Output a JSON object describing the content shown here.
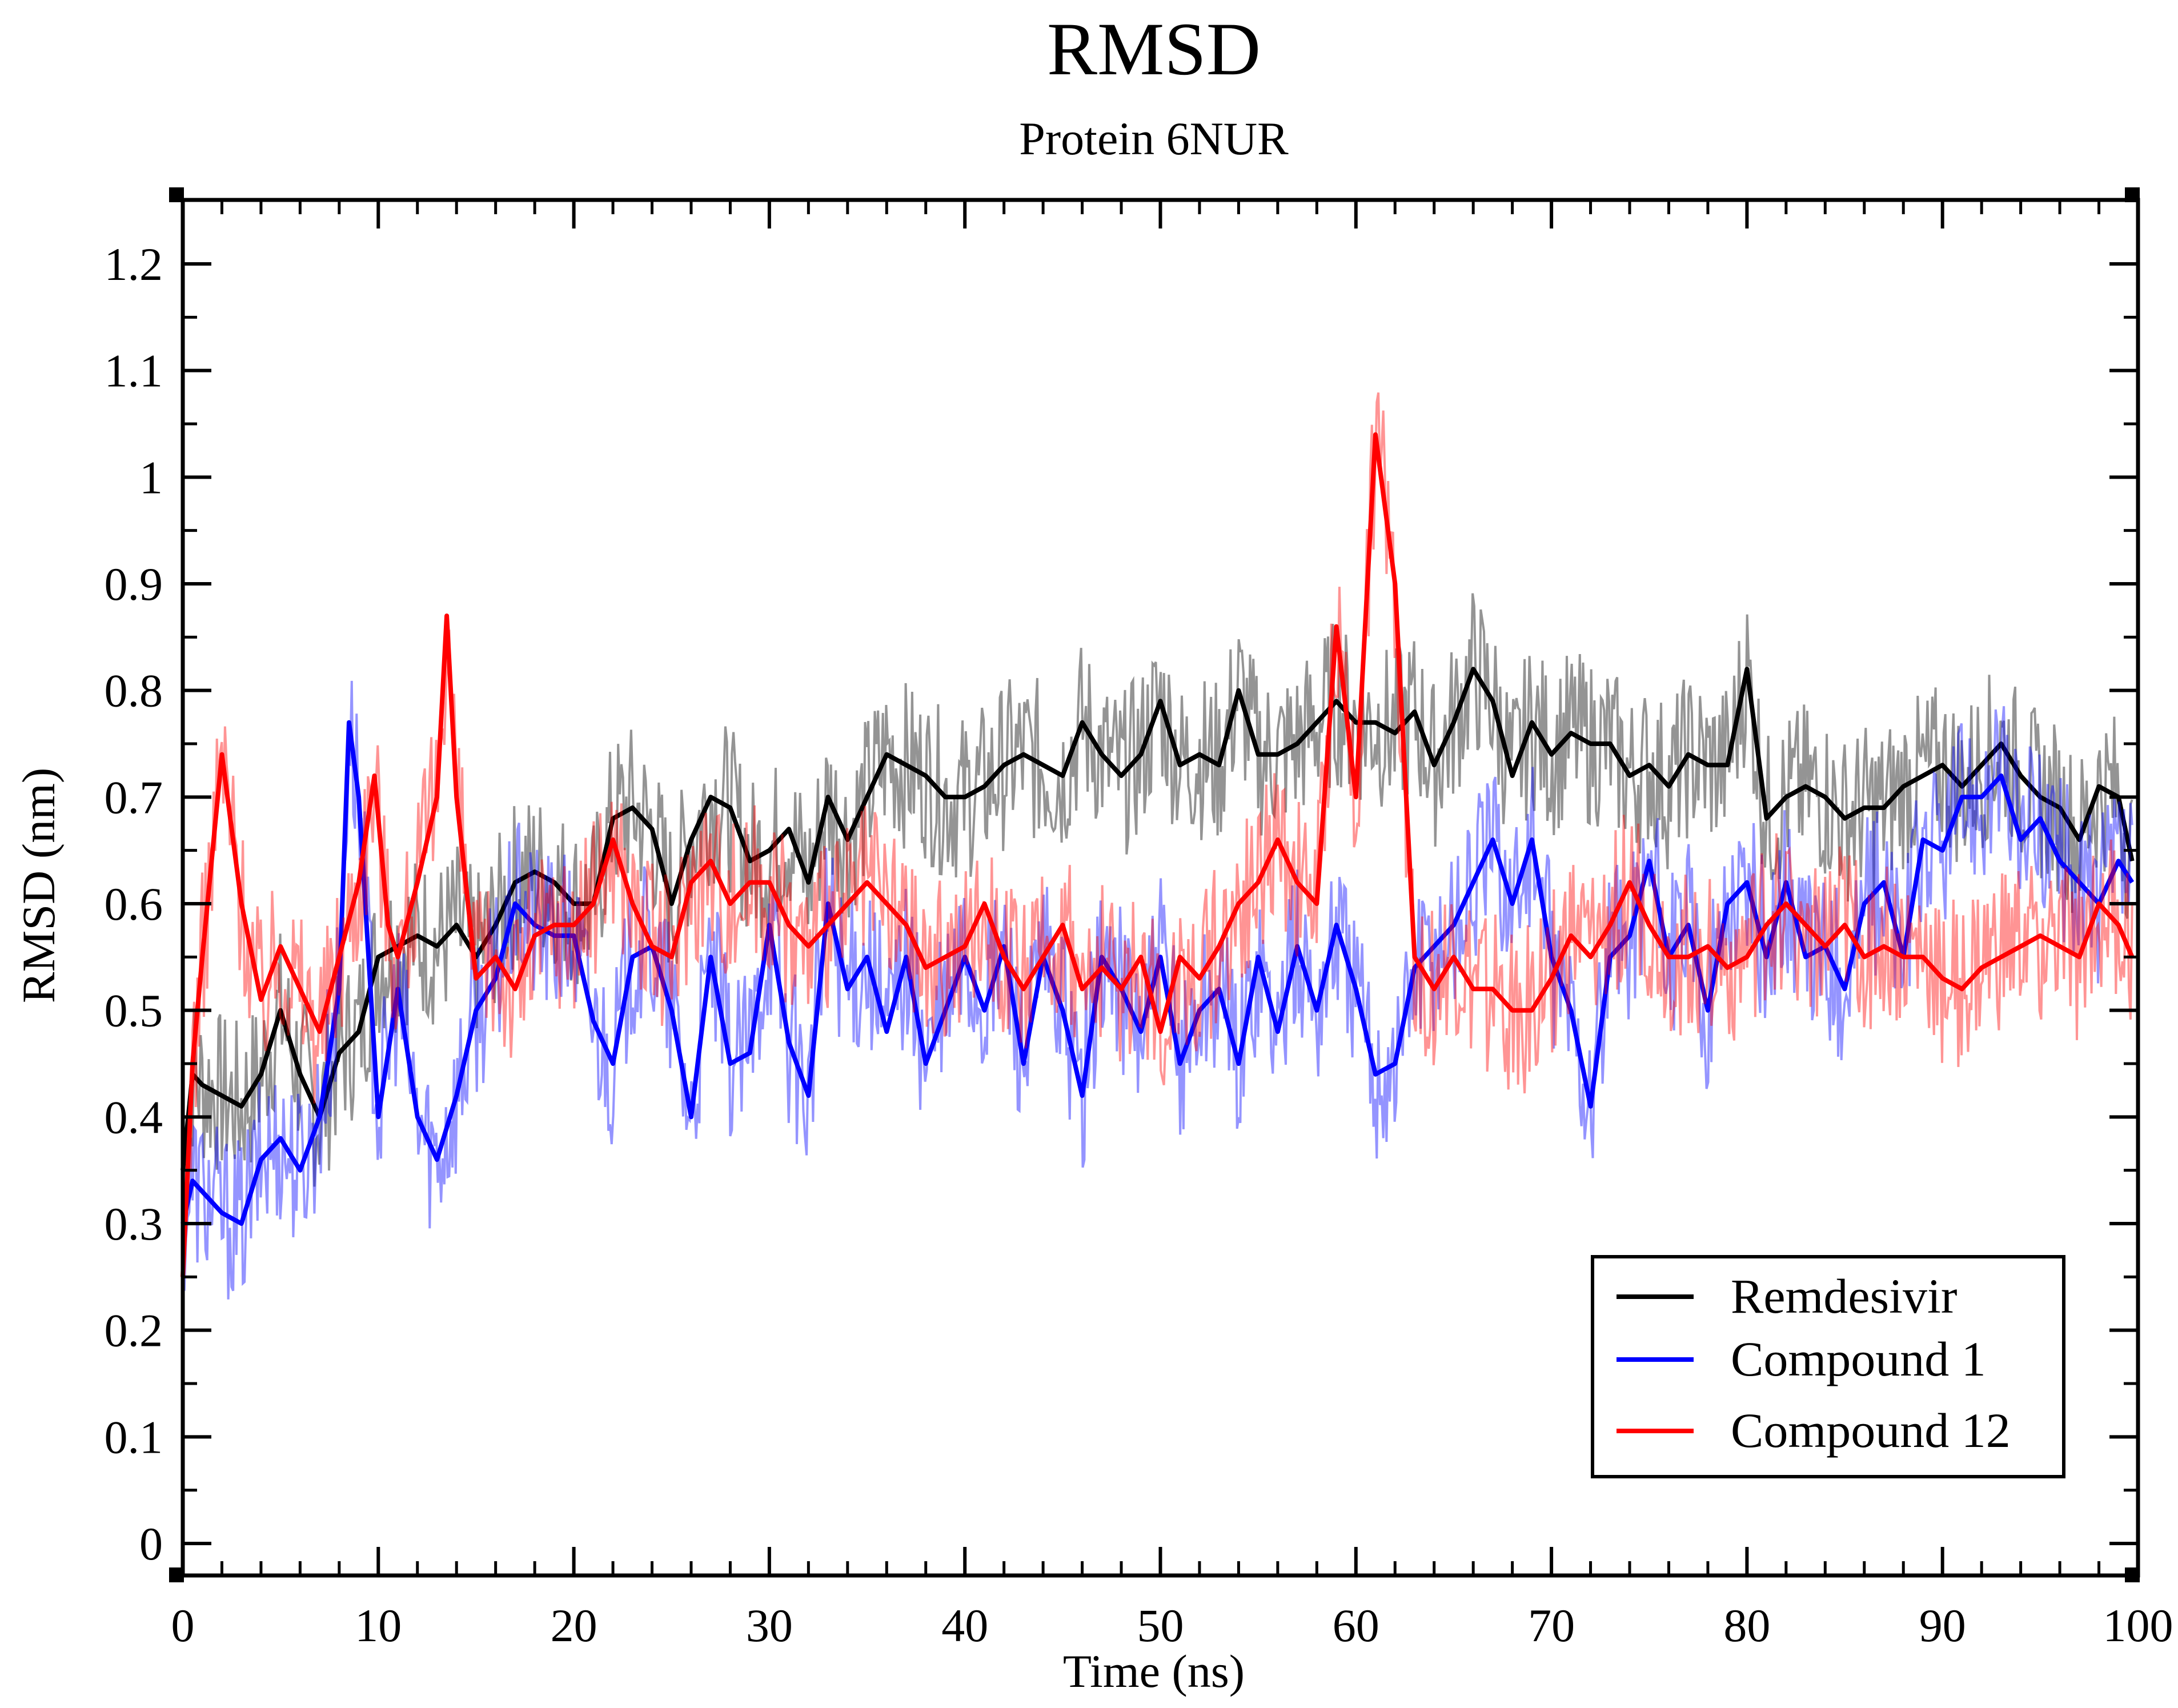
{
  "chart_data": {
    "type": "line",
    "title": "RMSD",
    "subtitle": "Protein 6NUR",
    "xlabel": "Time (ns)",
    "ylabel": "RMSD (nm)",
    "xlim": [
      0,
      100
    ],
    "ylim": [
      -0.03,
      1.26
    ],
    "x_ticks": [
      0,
      10,
      20,
      30,
      40,
      50,
      60,
      70,
      80,
      90,
      100
    ],
    "x_tick_labels": [
      "0",
      "10",
      "20",
      "30",
      "40",
      "50",
      "60",
      "70",
      "80",
      "90",
      "100"
    ],
    "y_ticks": [
      0,
      0.1,
      0.2,
      0.3,
      0.4,
      0.5,
      0.6,
      0.7,
      0.8,
      0.9,
      1.0,
      1.1,
      1.2
    ],
    "y_tick_labels": [
      "0",
      "0.1",
      "0.2",
      "0.3",
      "0.4",
      "0.5",
      "0.6",
      "0.7",
      "0.8",
      "0.9",
      "1",
      "1.1",
      "1.2"
    ],
    "grid": false,
    "legend_position": "bottom-right",
    "series": [
      {
        "name": "Remdesivir",
        "color": "#000000",
        "points": [
          [
            0,
            0.35
          ],
          [
            0.5,
            0.44
          ],
          [
            1,
            0.43
          ],
          [
            2,
            0.42
          ],
          [
            3,
            0.41
          ],
          [
            4,
            0.44
          ],
          [
            5,
            0.5
          ],
          [
            6,
            0.44
          ],
          [
            7,
            0.4
          ],
          [
            8,
            0.46
          ],
          [
            9,
            0.48
          ],
          [
            10,
            0.55
          ],
          [
            11,
            0.56
          ],
          [
            12,
            0.57
          ],
          [
            13,
            0.56
          ],
          [
            14,
            0.58
          ],
          [
            15,
            0.55
          ],
          [
            16,
            0.58
          ],
          [
            17,
            0.62
          ],
          [
            18,
            0.63
          ],
          [
            19,
            0.62
          ],
          [
            20,
            0.6
          ],
          [
            21,
            0.6
          ],
          [
            22,
            0.68
          ],
          [
            23,
            0.69
          ],
          [
            24,
            0.67
          ],
          [
            25,
            0.6
          ],
          [
            26,
            0.66
          ],
          [
            27,
            0.7
          ],
          [
            28,
            0.69
          ],
          [
            29,
            0.64
          ],
          [
            30,
            0.65
          ],
          [
            31,
            0.67
          ],
          [
            32,
            0.62
          ],
          [
            33,
            0.7
          ],
          [
            34,
            0.66
          ],
          [
            35,
            0.7
          ],
          [
            36,
            0.74
          ],
          [
            37,
            0.73
          ],
          [
            38,
            0.72
          ],
          [
            39,
            0.7
          ],
          [
            40,
            0.7
          ],
          [
            41,
            0.71
          ],
          [
            42,
            0.73
          ],
          [
            43,
            0.74
          ],
          [
            44,
            0.73
          ],
          [
            45,
            0.72
          ],
          [
            46,
            0.77
          ],
          [
            47,
            0.74
          ],
          [
            48,
            0.72
          ],
          [
            49,
            0.74
          ],
          [
            50,
            0.79
          ],
          [
            51,
            0.73
          ],
          [
            52,
            0.74
          ],
          [
            53,
            0.73
          ],
          [
            54,
            0.8
          ],
          [
            55,
            0.74
          ],
          [
            56,
            0.74
          ],
          [
            57,
            0.75
          ],
          [
            58,
            0.77
          ],
          [
            59,
            0.79
          ],
          [
            60,
            0.77
          ],
          [
            61,
            0.77
          ],
          [
            62,
            0.76
          ],
          [
            63,
            0.78
          ],
          [
            64,
            0.73
          ],
          [
            65,
            0.77
          ],
          [
            66,
            0.82
          ],
          [
            67,
            0.79
          ],
          [
            68,
            0.72
          ],
          [
            69,
            0.77
          ],
          [
            70,
            0.74
          ],
          [
            71,
            0.76
          ],
          [
            72,
            0.75
          ],
          [
            73,
            0.75
          ],
          [
            74,
            0.72
          ],
          [
            75,
            0.73
          ],
          [
            76,
            0.71
          ],
          [
            77,
            0.74
          ],
          [
            78,
            0.73
          ],
          [
            79,
            0.73
          ],
          [
            80,
            0.82
          ],
          [
            81,
            0.68
          ],
          [
            82,
            0.7
          ],
          [
            83,
            0.71
          ],
          [
            84,
            0.7
          ],
          [
            85,
            0.68
          ],
          [
            86,
            0.69
          ],
          [
            87,
            0.69
          ],
          [
            88,
            0.71
          ],
          [
            89,
            0.72
          ],
          [
            90,
            0.73
          ],
          [
            91,
            0.71
          ],
          [
            92,
            0.73
          ],
          [
            93,
            0.75
          ],
          [
            94,
            0.72
          ],
          [
            95,
            0.7
          ],
          [
            96,
            0.69
          ],
          [
            97,
            0.66
          ],
          [
            98,
            0.71
          ],
          [
            99,
            0.7
          ],
          [
            99.7,
            0.64
          ]
        ]
      },
      {
        "name": "Compound 1",
        "color": "#0000ff",
        "points": [
          [
            0,
            0.3
          ],
          [
            0.5,
            0.34
          ],
          [
            1,
            0.33
          ],
          [
            2,
            0.31
          ],
          [
            3,
            0.3
          ],
          [
            4,
            0.36
          ],
          [
            5,
            0.38
          ],
          [
            6,
            0.35
          ],
          [
            7,
            0.4
          ],
          [
            8,
            0.52
          ],
          [
            8.5,
            0.77
          ],
          [
            9,
            0.7
          ],
          [
            10,
            0.4
          ],
          [
            11,
            0.52
          ],
          [
            12,
            0.4
          ],
          [
            13,
            0.36
          ],
          [
            14,
            0.42
          ],
          [
            15,
            0.5
          ],
          [
            16,
            0.53
          ],
          [
            17,
            0.6
          ],
          [
            18,
            0.58
          ],
          [
            19,
            0.57
          ],
          [
            20,
            0.57
          ],
          [
            21,
            0.49
          ],
          [
            22,
            0.45
          ],
          [
            23,
            0.55
          ],
          [
            24,
            0.56
          ],
          [
            25,
            0.5
          ],
          [
            26,
            0.4
          ],
          [
            27,
            0.55
          ],
          [
            28,
            0.45
          ],
          [
            29,
            0.46
          ],
          [
            30,
            0.58
          ],
          [
            31,
            0.47
          ],
          [
            32,
            0.42
          ],
          [
            33,
            0.6
          ],
          [
            34,
            0.52
          ],
          [
            35,
            0.55
          ],
          [
            36,
            0.48
          ],
          [
            37,
            0.55
          ],
          [
            38,
            0.45
          ],
          [
            39,
            0.5
          ],
          [
            40,
            0.55
          ],
          [
            41,
            0.5
          ],
          [
            42,
            0.56
          ],
          [
            43,
            0.45
          ],
          [
            44,
            0.55
          ],
          [
            45,
            0.5
          ],
          [
            46,
            0.42
          ],
          [
            47,
            0.55
          ],
          [
            48,
            0.52
          ],
          [
            49,
            0.48
          ],
          [
            50,
            0.55
          ],
          [
            51,
            0.45
          ],
          [
            52,
            0.5
          ],
          [
            53,
            0.52
          ],
          [
            54,
            0.45
          ],
          [
            55,
            0.55
          ],
          [
            56,
            0.48
          ],
          [
            57,
            0.56
          ],
          [
            58,
            0.5
          ],
          [
            59,
            0.58
          ],
          [
            60,
            0.52
          ],
          [
            61,
            0.44
          ],
          [
            62,
            0.45
          ],
          [
            63,
            0.54
          ],
          [
            64,
            0.56
          ],
          [
            65,
            0.58
          ],
          [
            66,
            0.62
          ],
          [
            67,
            0.66
          ],
          [
            68,
            0.6
          ],
          [
            69,
            0.66
          ],
          [
            70,
            0.55
          ],
          [
            71,
            0.5
          ],
          [
            72,
            0.41
          ],
          [
            73,
            0.55
          ],
          [
            74,
            0.57
          ],
          [
            75,
            0.64
          ],
          [
            76,
            0.55
          ],
          [
            77,
            0.58
          ],
          [
            78,
            0.5
          ],
          [
            79,
            0.6
          ],
          [
            80,
            0.62
          ],
          [
            81,
            0.55
          ],
          [
            82,
            0.62
          ],
          [
            83,
            0.55
          ],
          [
            84,
            0.56
          ],
          [
            85,
            0.52
          ],
          [
            86,
            0.6
          ],
          [
            87,
            0.62
          ],
          [
            88,
            0.55
          ],
          [
            89,
            0.66
          ],
          [
            90,
            0.65
          ],
          [
            91,
            0.7
          ],
          [
            92,
            0.7
          ],
          [
            93,
            0.72
          ],
          [
            94,
            0.66
          ],
          [
            95,
            0.68
          ],
          [
            96,
            0.64
          ],
          [
            97,
            0.62
          ],
          [
            98,
            0.6
          ],
          [
            99,
            0.64
          ],
          [
            99.7,
            0.62
          ]
        ]
      },
      {
        "name": "Compound 12",
        "color": "#ff0000",
        "points": [
          [
            0,
            0.25
          ],
          [
            0.5,
            0.45
          ],
          [
            1,
            0.55
          ],
          [
            2,
            0.74
          ],
          [
            3,
            0.6
          ],
          [
            4,
            0.51
          ],
          [
            5,
            0.56
          ],
          [
            6,
            0.52
          ],
          [
            7,
            0.48
          ],
          [
            8,
            0.55
          ],
          [
            9,
            0.62
          ],
          [
            9.8,
            0.72
          ],
          [
            10.5,
            0.58
          ],
          [
            11,
            0.55
          ],
          [
            12,
            0.62
          ],
          [
            13,
            0.7
          ],
          [
            13.5,
            0.87
          ],
          [
            14,
            0.7
          ],
          [
            15,
            0.53
          ],
          [
            16,
            0.55
          ],
          [
            17,
            0.52
          ],
          [
            18,
            0.57
          ],
          [
            19,
            0.58
          ],
          [
            20,
            0.58
          ],
          [
            21,
            0.6
          ],
          [
            22,
            0.66
          ],
          [
            23,
            0.6
          ],
          [
            24,
            0.56
          ],
          [
            25,
            0.55
          ],
          [
            26,
            0.62
          ],
          [
            27,
            0.64
          ],
          [
            28,
            0.6
          ],
          [
            29,
            0.62
          ],
          [
            30,
            0.62
          ],
          [
            31,
            0.58
          ],
          [
            32,
            0.56
          ],
          [
            33,
            0.58
          ],
          [
            34,
            0.6
          ],
          [
            35,
            0.62
          ],
          [
            36,
            0.6
          ],
          [
            37,
            0.58
          ],
          [
            38,
            0.54
          ],
          [
            39,
            0.55
          ],
          [
            40,
            0.56
          ],
          [
            41,
            0.6
          ],
          [
            42,
            0.55
          ],
          [
            43,
            0.52
          ],
          [
            44,
            0.55
          ],
          [
            45,
            0.58
          ],
          [
            46,
            0.52
          ],
          [
            47,
            0.54
          ],
          [
            48,
            0.52
          ],
          [
            49,
            0.55
          ],
          [
            50,
            0.48
          ],
          [
            51,
            0.55
          ],
          [
            52,
            0.53
          ],
          [
            53,
            0.56
          ],
          [
            54,
            0.6
          ],
          [
            55,
            0.62
          ],
          [
            56,
            0.66
          ],
          [
            57,
            0.62
          ],
          [
            58,
            0.6
          ],
          [
            59,
            0.86
          ],
          [
            60,
            0.7
          ],
          [
            61,
            1.04
          ],
          [
            62,
            0.9
          ],
          [
            63,
            0.55
          ],
          [
            64,
            0.52
          ],
          [
            65,
            0.55
          ],
          [
            66,
            0.52
          ],
          [
            67,
            0.52
          ],
          [
            68,
            0.5
          ],
          [
            69,
            0.5
          ],
          [
            70,
            0.53
          ],
          [
            71,
            0.57
          ],
          [
            72,
            0.55
          ],
          [
            73,
            0.58
          ],
          [
            74,
            0.62
          ],
          [
            75,
            0.58
          ],
          [
            76,
            0.55
          ],
          [
            77,
            0.55
          ],
          [
            78,
            0.56
          ],
          [
            79,
            0.54
          ],
          [
            80,
            0.55
          ],
          [
            81,
            0.58
          ],
          [
            82,
            0.6
          ],
          [
            83,
            0.58
          ],
          [
            84,
            0.56
          ],
          [
            85,
            0.58
          ],
          [
            86,
            0.55
          ],
          [
            87,
            0.56
          ],
          [
            88,
            0.55
          ],
          [
            89,
            0.55
          ],
          [
            90,
            0.53
          ],
          [
            91,
            0.52
          ],
          [
            92,
            0.54
          ],
          [
            93,
            0.55
          ],
          [
            94,
            0.56
          ],
          [
            95,
            0.57
          ],
          [
            96,
            0.56
          ],
          [
            97,
            0.55
          ],
          [
            98,
            0.6
          ],
          [
            99,
            0.58
          ],
          [
            99.7,
            0.55
          ]
        ]
      }
    ]
  }
}
